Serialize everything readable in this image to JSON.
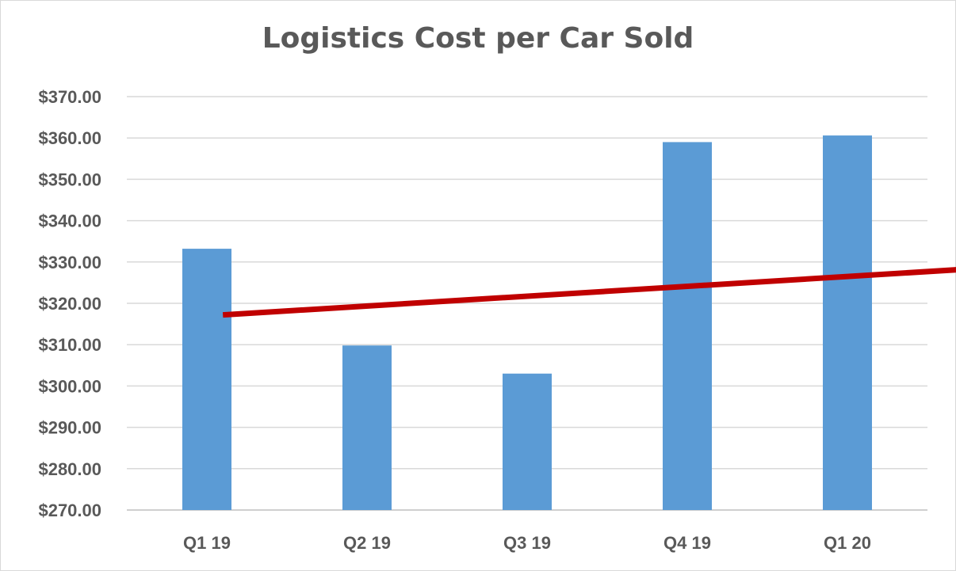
{
  "chart_data": {
    "type": "bar",
    "title": "Logistics Cost per Car Sold",
    "xlabel": "",
    "ylabel": "",
    "categories": [
      "Q1 19",
      "Q2 19",
      "Q3 19",
      "Q4 19",
      "Q1 20"
    ],
    "values": [
      333.2,
      309.8,
      303.0,
      359.0,
      360.6
    ],
    "ylim": [
      270,
      370
    ],
    "yticks": [
      270,
      280,
      290,
      300,
      310,
      320,
      330,
      340,
      350,
      360,
      370
    ],
    "ytick_labels": [
      "$270.00",
      "$280.00",
      "$290.00",
      "$300.00",
      "$310.00",
      "$320.00",
      "$330.00",
      "$340.00",
      "$350.00",
      "$360.00",
      "$370.00"
    ],
    "grid": true,
    "legend": "none",
    "bar_color": "#5b9bd5",
    "annotations": [
      {
        "type": "trend-arrow",
        "from": [
          0.6,
          317.2
        ],
        "to": [
          5.45,
          328.4
        ],
        "color": "#c00000"
      }
    ]
  }
}
